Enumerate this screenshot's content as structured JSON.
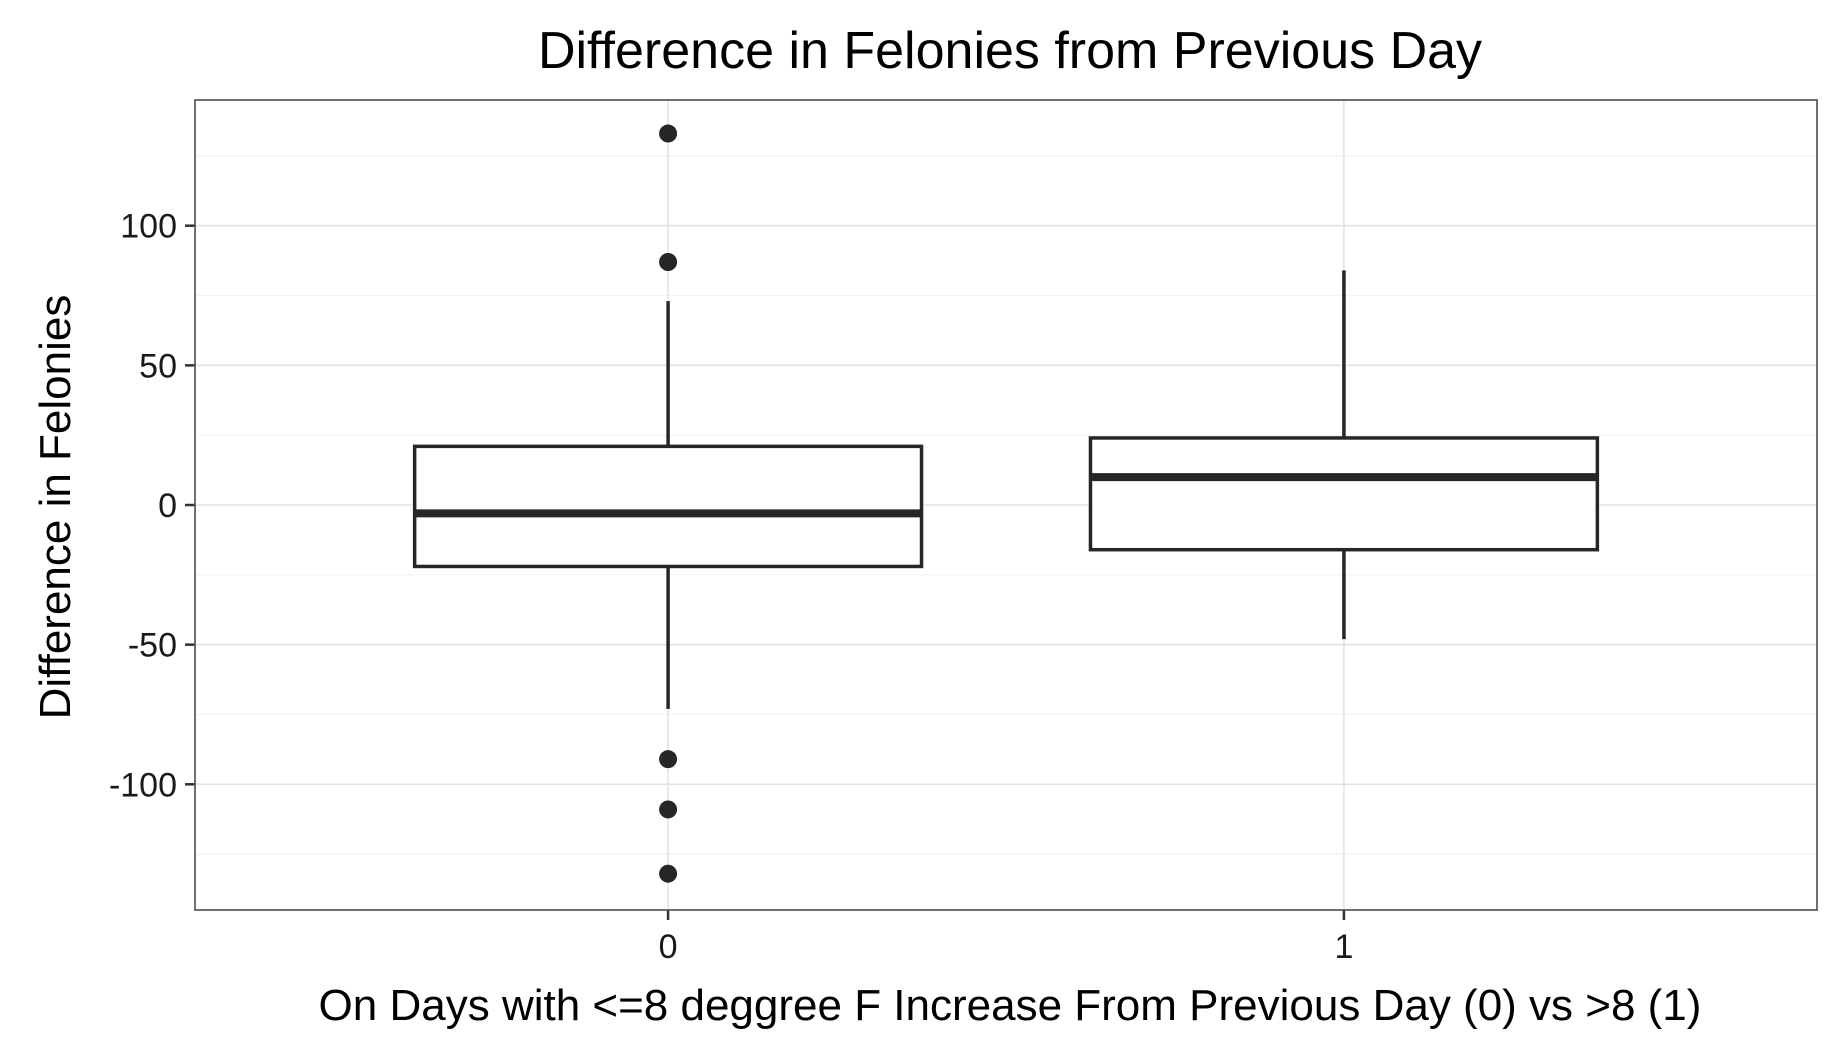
{
  "chart_data": {
    "type": "boxplot",
    "title": "Difference in Felonies from Previous Day",
    "xlabel": "On Days with <=8 deggree F Increase From Previous Day (0) vs >8 (1)",
    "ylabel": "Difference in Felonies",
    "categories": [
      "0",
      "1"
    ],
    "ylim": [
      -145,
      145
    ],
    "y_ticks": [
      -100,
      -50,
      0,
      50,
      100
    ],
    "y_tick_labels": [
      "-100",
      "-50",
      "0",
      "50",
      "100"
    ],
    "grid": true,
    "boxes": [
      {
        "category": "0",
        "whisker_low": -73,
        "q1": -22,
        "median": -3,
        "q3": 21,
        "whisker_high": 73,
        "outliers": [
          133,
          87,
          -91,
          -109,
          -132
        ]
      },
      {
        "category": "1",
        "whisker_low": -48,
        "q1": -16,
        "median": 10,
        "q3": 24,
        "whisker_high": 84,
        "outliers": []
      }
    ]
  }
}
